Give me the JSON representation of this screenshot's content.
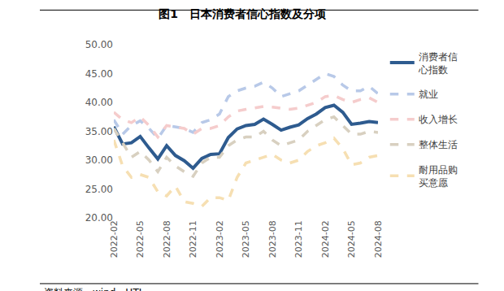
{
  "chart_data": {
    "type": "line",
    "title": "图1　日本消费者信心指数及分项",
    "source": "资料来源：wind，HTI",
    "categories": [
      "2022-02",
      null,
      null,
      "2022-05",
      null,
      null,
      "2022-08",
      null,
      null,
      "2022-11",
      null,
      null,
      "2023-02",
      null,
      null,
      "2023-05",
      null,
      null,
      "2023-08",
      null,
      null,
      "2023-11",
      null,
      null,
      "2024-02",
      null,
      null,
      "2024-05",
      null,
      null,
      "2024-08"
    ],
    "ylim": [
      20,
      50
    ],
    "yticks": [
      {
        "value": 20,
        "label": "20.00"
      },
      {
        "value": 25,
        "label": "25.00"
      },
      {
        "value": 30,
        "label": "30.00"
      },
      {
        "value": 35,
        "label": "35.00"
      },
      {
        "value": 40,
        "label": "40.00"
      },
      {
        "value": 45,
        "label": "45.00"
      },
      {
        "value": 50,
        "label": "50.00"
      }
    ],
    "grid": false,
    "legend": "right",
    "series": [
      {
        "name": "消费者信心指数",
        "color": "#2e5b8f",
        "line_style": "solid",
        "values": [
          35.8,
          32.8,
          33.0,
          34.1,
          32.1,
          30.2,
          32.5,
          30.8,
          29.9,
          28.6,
          30.3,
          31.0,
          31.1,
          33.9,
          35.4,
          36.0,
          36.2,
          37.1,
          36.2,
          35.2,
          35.7,
          36.1,
          37.2,
          38.0,
          39.1,
          39.5,
          38.3,
          36.2,
          36.4,
          36.7,
          36.5
        ]
      },
      {
        "name": "就业",
        "color": "#b8c9e8",
        "line_style": "dash",
        "values": [
          37.0,
          34.5,
          36.0,
          36.8,
          35.5,
          33.8,
          36.0,
          35.8,
          35.5,
          34.8,
          36.5,
          37.0,
          38.0,
          41.0,
          42.0,
          42.5,
          42.8,
          43.5,
          42.5,
          41.0,
          41.5,
          42.0,
          43.0,
          44.0,
          45.0,
          44.5,
          43.0,
          42.0,
          42.0,
          42.8,
          41.5
        ]
      },
      {
        "name": "收入增长",
        "color": "#f5cccc",
        "line_style": "dash",
        "values": [
          38.3,
          37.0,
          36.5,
          37.5,
          36.0,
          34.0,
          36.0,
          35.8,
          35.5,
          34.5,
          35.5,
          35.5,
          36.0,
          37.5,
          38.5,
          38.8,
          39.0,
          39.3,
          39.2,
          39.0,
          38.8,
          39.0,
          39.5,
          40.0,
          41.0,
          41.2,
          40.5,
          40.0,
          40.5,
          40.8,
          40.0
        ]
      },
      {
        "name": "整体生活",
        "color": "#d8d0c0",
        "line_style": "dash",
        "values": [
          35.5,
          33.0,
          30.5,
          31.5,
          30.0,
          28.0,
          30.5,
          29.0,
          28.0,
          27.2,
          29.5,
          30.5,
          30.5,
          32.5,
          33.5,
          34.0,
          34.0,
          35.0,
          33.5,
          32.5,
          33.0,
          33.5,
          35.0,
          36.0,
          37.0,
          37.5,
          36.0,
          34.5,
          34.5,
          35.0,
          34.8
        ]
      },
      {
        "name": "耐用品购买意愿",
        "color": "#f6dfb2",
        "line_style": "dash",
        "values": [
          33.5,
          29.0,
          27.0,
          27.5,
          27.0,
          24.5,
          23.8,
          25.5,
          22.8,
          22.5,
          22.0,
          23.5,
          23.5,
          23.0,
          27.0,
          29.5,
          30.0,
          30.5,
          31.0,
          30.0,
          29.5,
          30.0,
          31.5,
          32.5,
          33.0,
          33.8,
          32.0,
          29.2,
          29.5,
          30.5,
          30.8
        ]
      }
    ]
  }
}
